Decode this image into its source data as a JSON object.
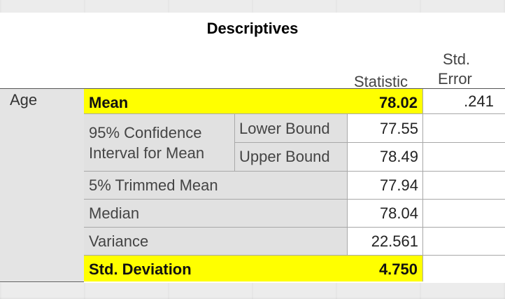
{
  "table": {
    "title": "Descriptives",
    "header": {
      "statistic": "Statistic",
      "std_error_line1": "Std.",
      "std_error_line2": "Error"
    },
    "variable": "Age",
    "rows": {
      "mean": {
        "label": "Mean",
        "statistic": "78.02",
        "std_error": ".241"
      },
      "ci_label_line1": "95% Confidence",
      "ci_label_line2": "Interval for Mean",
      "lower_bound": {
        "label": "Lower Bound",
        "statistic": "77.55"
      },
      "upper_bound": {
        "label": "Upper Bound",
        "statistic": "78.49"
      },
      "trimmed_mean": {
        "label": "5% Trimmed Mean",
        "statistic": "77.94"
      },
      "median": {
        "label": "Median",
        "statistic": "78.04"
      },
      "variance": {
        "label": "Variance",
        "statistic": "22.561"
      },
      "std_deviation": {
        "label": "Std. Deviation",
        "statistic": "4.750"
      }
    }
  },
  "colors": {
    "highlight": "#ffff00",
    "label_background": "#e1e1e1"
  }
}
